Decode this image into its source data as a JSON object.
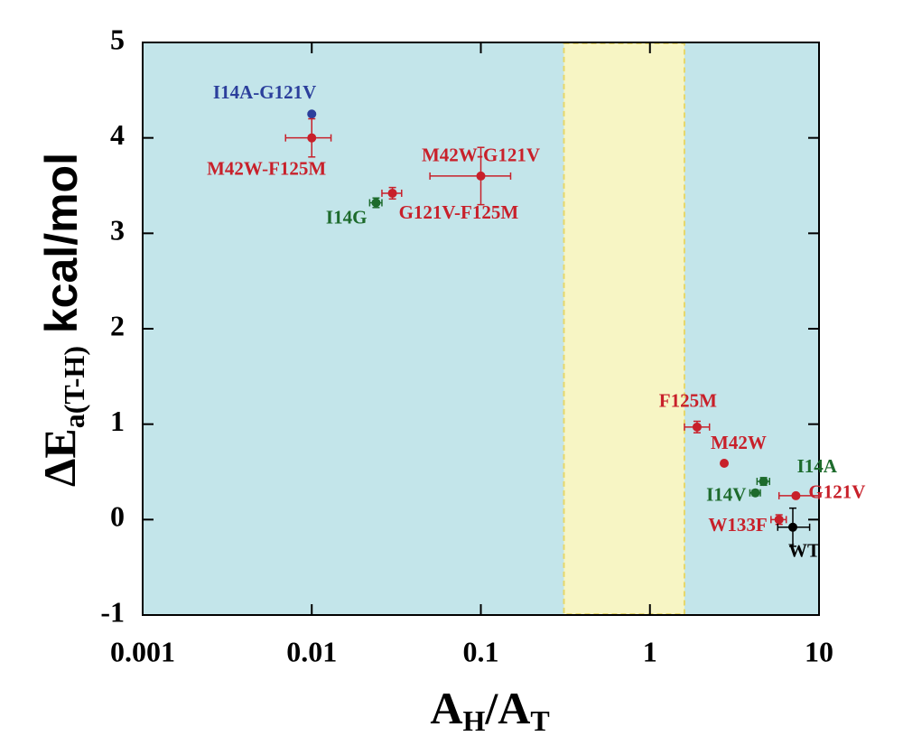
{
  "chart_data": {
    "type": "scatter",
    "x_label": [
      "A",
      "H",
      "/A",
      "T"
    ],
    "y_label": [
      "ΔE",
      "a(T-H)",
      " kcal/mol"
    ],
    "xlim": [
      0.001,
      10
    ],
    "ylim": [
      -1,
      5
    ],
    "xticks": [
      0.001,
      0.01,
      0.1,
      1,
      10
    ],
    "yticks": [
      -1,
      0,
      1,
      2,
      3,
      4,
      5
    ],
    "log_x": true,
    "background_color": "#c3e5ea",
    "shaded_region": {
      "xlim": [
        0.31,
        1.6
      ],
      "color": "#f7f5c4"
    },
    "points": [
      {
        "label": "I14A-G121V",
        "x": 0.01,
        "y": 4.25,
        "color": "#2b3f9c"
      },
      {
        "label": "M42W-F125M",
        "x": 0.01,
        "y": 4.0,
        "xerr": [
          0.003,
          0.003
        ],
        "yerr": 0.2,
        "color": "#c8202a"
      },
      {
        "label": "I14G",
        "x": 0.024,
        "y": 3.32,
        "xerr": [
          0.002,
          0.002
        ],
        "yerr": 0.05,
        "color": "#1d6b2c"
      },
      {
        "label": "G121V-F125M",
        "x": 0.03,
        "y": 3.42,
        "xerr": [
          0.004,
          0.004
        ],
        "yerr": 0.06,
        "color": "#c8202a"
      },
      {
        "label": "M42W-G121V",
        "x": 0.1,
        "y": 3.6,
        "xerr": [
          0.05,
          0.05
        ],
        "yerr": 0.3,
        "color": "#c8202a"
      },
      {
        "label": "F125M",
        "x": 1.9,
        "y": 0.97,
        "xerr": [
          0.3,
          0.35
        ],
        "yerr": 0.06,
        "color": "#c8202a"
      },
      {
        "label": "M42W",
        "x": 2.75,
        "y": 0.59,
        "color": "#c8202a"
      },
      {
        "label": "I14A",
        "x": 4.7,
        "y": 0.4,
        "xerr": [
          0.4,
          0.4
        ],
        "yerr": 0.04,
        "color": "#1d6b2c"
      },
      {
        "label": "I14V",
        "x": 4.2,
        "y": 0.28,
        "xerr": [
          0.3,
          0.3
        ],
        "yerr": 0.03,
        "color": "#1d6b2c"
      },
      {
        "label": "G121V",
        "x": 7.3,
        "y": 0.25,
        "xerr": [
          1.5,
          2.7
        ],
        "color": "#c8202a"
      },
      {
        "label": "W133F",
        "x": 5.8,
        "y": 0.0,
        "xerr": [
          0.6,
          0.6
        ],
        "yerr": 0.05,
        "color": "#c8202a"
      },
      {
        "label": "WT",
        "x": 7.0,
        "y": -0.08,
        "xerr": [
          1.3,
          1.8
        ],
        "yerr": 0.2,
        "color": "#000000"
      }
    ]
  }
}
